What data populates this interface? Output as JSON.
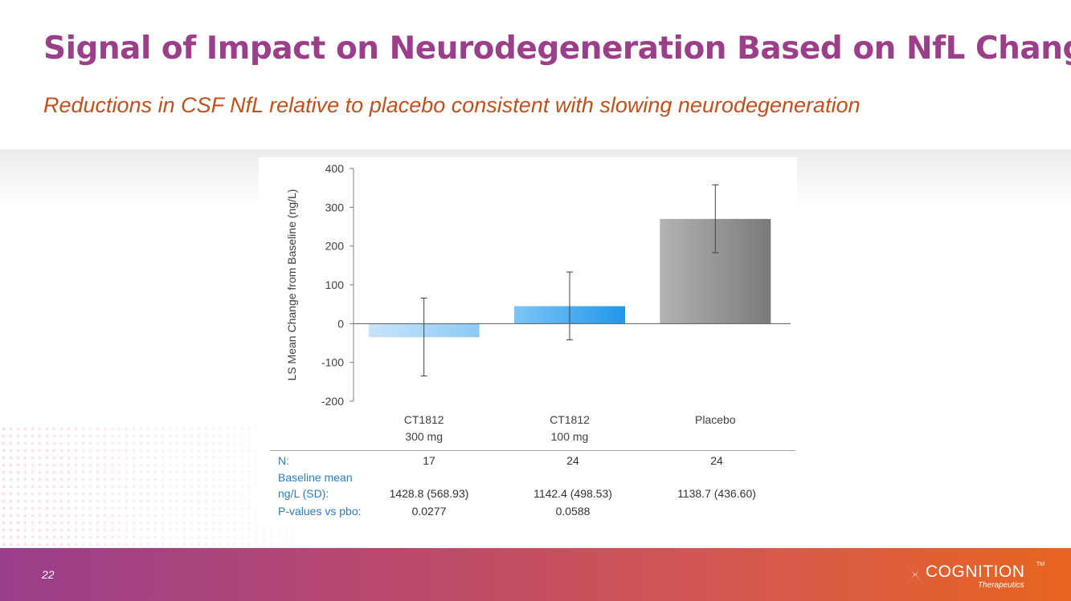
{
  "slide": {
    "title": "Signal of Impact on Neurodegeneration Based on NfL Change",
    "subtitle": "Reductions in CSF NfL relative to placebo consistent with slowing neurodegeneration",
    "page_number": "22",
    "colors": {
      "title": "#9b3f8b",
      "subtitle": "#c0501c",
      "table_label": "#2e7bbf",
      "footer_start": "#9a3f8c",
      "footer_end": "#e8651f"
    }
  },
  "chart_data": {
    "type": "bar",
    "categories": [
      {
        "line1": "CT1812",
        "line2": "300 mg"
      },
      {
        "line1": "CT1812",
        "line2": "100 mg"
      },
      {
        "line1": "Placebo",
        "line2": ""
      }
    ],
    "values": [
      -35,
      45,
      270
    ],
    "error_low": [
      -135,
      -42,
      183
    ],
    "error_high": [
      66,
      133,
      358
    ],
    "bar_colors": [
      [
        "#c9e4fa",
        "#8ccaf5"
      ],
      [
        "#7ec5f5",
        "#2097ea"
      ],
      [
        "#b3b3b3",
        "#7a7a7a"
      ]
    ],
    "ylabel": "LS Mean Change from Baseline (ng/L)",
    "xlabel": "",
    "ylim": [
      -200,
      400
    ],
    "yticks": [
      400,
      300,
      200,
      100,
      0,
      -100,
      -200
    ],
    "ytick_labels": [
      "400",
      "300",
      "200",
      "100",
      "0",
      "-100",
      "-200"
    ],
    "grid": false
  },
  "table": {
    "n_label": "N:",
    "n_values": [
      "17",
      "24",
      "24"
    ],
    "baseline_label_line1": "Baseline mean",
    "baseline_label_line2": "ng/L (SD):",
    "baseline_values": [
      "1428.8 (568.93)",
      "1142.4 (498.53)",
      "1138.7 (436.60)"
    ],
    "pvalue_label": "P-values vs pbo:",
    "pvalues": [
      "0.0277",
      "0.0588"
    ]
  },
  "logo": {
    "name": "COGNITION",
    "tm": "TM",
    "tagline": "Therapeutics"
  }
}
